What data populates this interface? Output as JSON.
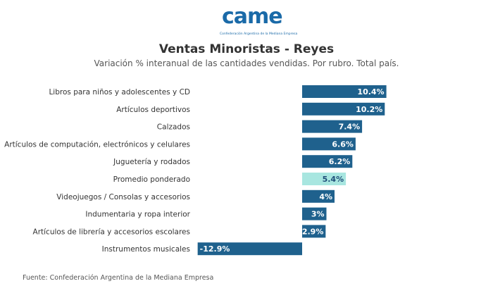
{
  "logo": {
    "wordmark": "came",
    "tagline": "Confederación Argentina de la Mediana Empresa"
  },
  "source": "Fuente: Confederación Argentina de la Mediana Empresa",
  "colors": {
    "bar": "#1f618d",
    "highlight": "#a8e6e0"
  },
  "chart_data": {
    "type": "bar",
    "orientation": "horizontal",
    "title": "Ventas Minoristas - Reyes",
    "subtitle": "Variación % interanual de las cantidades vendidas. Por rubro. Total país.",
    "categories": [
      "Libros para niños y adolescentes y CD",
      "Artículos deportivos",
      "Calzados",
      "Artículos de computación, electrónicos y celulares",
      "Juguetería y rodados",
      "Promedio ponderado",
      "Videojuegos / Consolas y accesorios",
      "Indumentaria y ropa interior",
      "Artículos de librería y accesorios escolares",
      "Instrumentos musicales"
    ],
    "values": [
      10.4,
      10.2,
      7.4,
      6.6,
      6.2,
      5.4,
      4,
      3,
      2.9,
      -12.9
    ],
    "data_labels": [
      "10.4%",
      "10.2%",
      "7.4%",
      "6.6%",
      "6.2%",
      "5.4%",
      "4%",
      "3%",
      "2.9%",
      "-12.9%"
    ],
    "highlight_index": 5,
    "grid": false
  }
}
